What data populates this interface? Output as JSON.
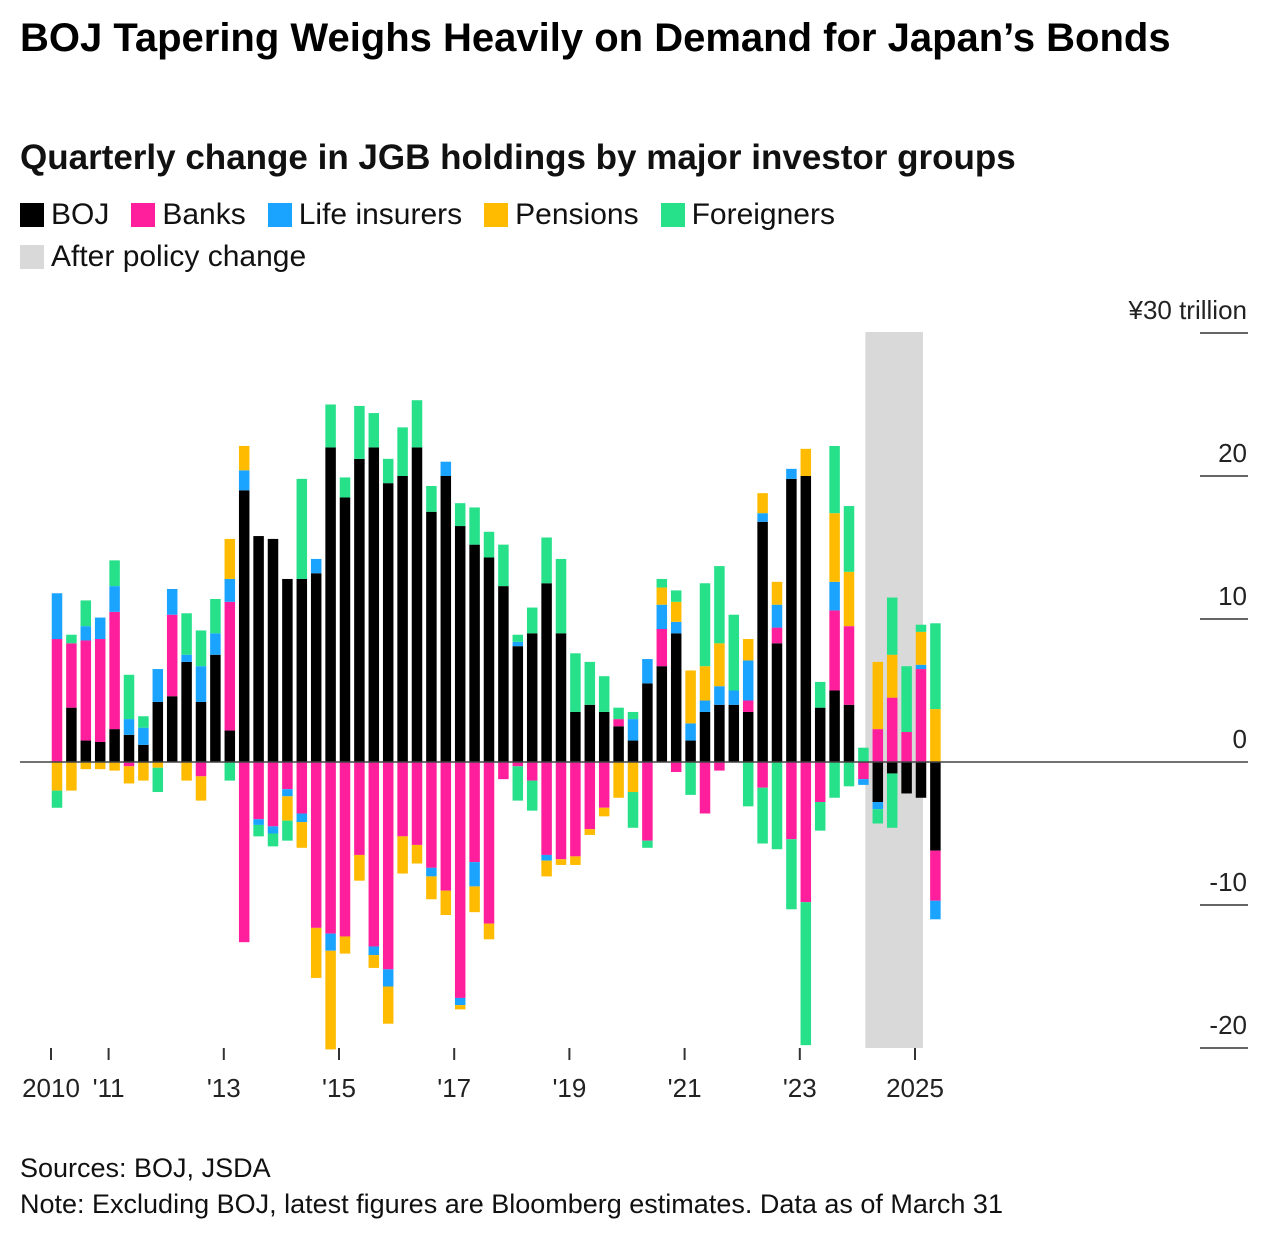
{
  "title": "BOJ Tapering Weighs Heavily on Demand for Japan’s Bonds",
  "subtitle": "Quarterly change in JGB holdings by major investor groups",
  "legend": {
    "series": [
      {
        "label": "BOJ",
        "color": "#000000"
      },
      {
        "label": "Banks",
        "color": "#ff1f9c"
      },
      {
        "label": "Life insurers",
        "color": "#1aa3ff"
      },
      {
        "label": "Pensions",
        "color": "#ffbb00"
      },
      {
        "label": "Foreigners",
        "color": "#26e08a"
      }
    ],
    "shade": {
      "label": "After policy change",
      "color": "#d9d9d9"
    }
  },
  "footer": {
    "sources": "Sources: BOJ, JSDA",
    "note": "Note: Excluding BOJ, latest figures are Bloomberg estimates. Data as of March 31"
  },
  "chart_data": {
    "type": "bar",
    "stacked": true,
    "unit_label": "¥30 trillion",
    "ylim": [
      -20,
      30
    ],
    "yticks": [
      30,
      20,
      10,
      0,
      -10,
      -20
    ],
    "ytick_labels": [
      "¥30 trillion",
      "20",
      "10",
      "0",
      "-10",
      "-20"
    ],
    "xticks": [
      {
        "label": "2010",
        "q": 0
      },
      {
        "label": "'11",
        "q": 4
      },
      {
        "label": "'13",
        "q": 12
      },
      {
        "label": "'15",
        "q": 20
      },
      {
        "label": "'17",
        "q": 28
      },
      {
        "label": "'19",
        "q": 36
      },
      {
        "label": "'21",
        "q": 44
      },
      {
        "label": "'23",
        "q": 52
      },
      {
        "label": "2025",
        "q": 60
      }
    ],
    "shaded_region": {
      "label": "After policy change",
      "from_q": 56.5,
      "to_q": 60.5
    },
    "grid": false,
    "legend_position": "top",
    "series": [
      {
        "name": "BOJ",
        "color": "#000000",
        "values": [
          0,
          3.8,
          1.5,
          1.4,
          2.3,
          1.9,
          1.2,
          4.2,
          4.6,
          7,
          4.2,
          7.5,
          2.2,
          19,
          15.8,
          15.6,
          12.8,
          12.8,
          13.2,
          22,
          18.5,
          21.2,
          22,
          19.5,
          20,
          22,
          17.5,
          20,
          16.5,
          15.2,
          14.3,
          12.3,
          8.1,
          9,
          12.5,
          9,
          3.5,
          4,
          3.5,
          2.5,
          1.5,
          5.5,
          6.7,
          9,
          1.5,
          3.5,
          4,
          4,
          3.5,
          16.8,
          8.3,
          19.8,
          20,
          3.8,
          5,
          4,
          0,
          -2.8,
          -0.8,
          -2.2,
          -2.5,
          -6.2
        ],
        "neg_first": [
          false,
          false,
          false,
          false,
          false,
          false,
          false,
          false,
          false,
          false,
          false,
          false,
          false,
          false,
          false,
          false,
          false,
          false,
          false,
          false,
          false,
          false,
          false,
          false,
          false,
          false,
          false,
          false,
          false,
          false,
          false,
          false,
          false,
          false,
          false,
          false,
          false,
          false,
          false,
          false,
          false,
          false,
          false,
          false,
          false,
          false,
          false,
          false,
          false,
          false,
          false,
          false,
          false,
          false,
          false,
          false,
          false,
          true,
          true,
          true,
          true,
          true
        ]
      },
      {
        "name": "Banks",
        "color": "#ff1f9c",
        "values": [
          8.6,
          4.5,
          7,
          7.2,
          8.2,
          -0.3,
          0,
          0,
          5.7,
          0,
          -1,
          0,
          9,
          -12.6,
          -4,
          -4.5,
          -1.9,
          -3.6,
          -11.6,
          -12,
          -12.2,
          -6.5,
          -12.9,
          -14.5,
          -5.2,
          -5.8,
          -7.4,
          -9,
          -16.5,
          -7,
          -11.3,
          -1.2,
          -0.3,
          -1.3,
          -6.5,
          -6.8,
          -6.6,
          -4.7,
          -3.2,
          0.5,
          0,
          -5.5,
          2.6,
          -0.7,
          0,
          -3.6,
          -0.6,
          0,
          0.8,
          -1.8,
          1.1,
          -5.4,
          -9.8,
          -2.8,
          5.6,
          5.5,
          -1.2,
          2.3,
          4.5,
          2.1,
          6.5,
          -3.5
        ],
        "neg_first": [
          false,
          false,
          false,
          false,
          false,
          true,
          false,
          false,
          false,
          false,
          true,
          false,
          false,
          true,
          true,
          true,
          true,
          true,
          true,
          true,
          true,
          true,
          true,
          true,
          true,
          true,
          true,
          true,
          true,
          true,
          true,
          true,
          true,
          true,
          true,
          true,
          true,
          true,
          true,
          false,
          false,
          true,
          false,
          true,
          false,
          true,
          true,
          false,
          false,
          true,
          false,
          true,
          true,
          true,
          false,
          false,
          true,
          false,
          false,
          false,
          false,
          true
        ]
      },
      {
        "name": "Life insurers",
        "color": "#1aa3ff",
        "values": [
          3.2,
          0,
          1,
          1.5,
          1.8,
          1.1,
          1.2,
          2.3,
          1.8,
          0.5,
          2.5,
          1.5,
          1.6,
          1.4,
          -0.4,
          -0.5,
          -0.5,
          -0.6,
          1,
          -1.2,
          0,
          0,
          -0.6,
          -1.2,
          0,
          0,
          -0.6,
          1,
          -0.5,
          -1.7,
          0,
          0,
          0.3,
          0,
          -0.4,
          0,
          0,
          0,
          0,
          0,
          1.5,
          1.7,
          1.7,
          0.8,
          1.2,
          0.8,
          1.3,
          1,
          2.8,
          0.6,
          1.6,
          0.7,
          0,
          0,
          2,
          0,
          -0.4,
          -0.5,
          0,
          0,
          0.3,
          -1.3
        ],
        "neg_first": [
          false,
          false,
          false,
          false,
          false,
          false,
          false,
          false,
          false,
          false,
          false,
          false,
          false,
          false,
          true,
          true,
          true,
          true,
          false,
          true,
          false,
          false,
          true,
          true,
          false,
          false,
          true,
          false,
          true,
          true,
          false,
          false,
          false,
          false,
          true,
          false,
          false,
          false,
          false,
          false,
          false,
          false,
          false,
          false,
          false,
          false,
          false,
          false,
          false,
          false,
          false,
          false,
          false,
          false,
          false,
          false,
          true,
          true,
          false,
          false,
          false,
          true
        ]
      },
      {
        "name": "Pensions",
        "color": "#ffbb00",
        "values": [
          -2,
          -2,
          -0.5,
          -0.5,
          -0.6,
          -1.2,
          -1.3,
          -0.4,
          0,
          -1.3,
          -1.7,
          0,
          2.8,
          1.7,
          0,
          0,
          -1.7,
          -1.8,
          -3.5,
          -6.9,
          -1.2,
          -1.8,
          -0.9,
          -2.6,
          -2.6,
          -1.3,
          -1.6,
          -1.7,
          -0.3,
          -1.8,
          -1.1,
          0,
          0,
          0,
          -1.1,
          -0.4,
          -0.6,
          -0.4,
          -0.6,
          -2.5,
          -2.1,
          0,
          1.2,
          1.4,
          3.7,
          2.4,
          3,
          0,
          1.5,
          1.4,
          1.6,
          0,
          1.9,
          0,
          4.8,
          3.8,
          0,
          4.7,
          3,
          0,
          2.3,
          3.7
        ],
        "neg_first": [
          true,
          true,
          true,
          true,
          true,
          true,
          true,
          true,
          false,
          true,
          true,
          false,
          false,
          false,
          false,
          false,
          true,
          true,
          true,
          true,
          true,
          true,
          true,
          true,
          true,
          true,
          true,
          true,
          true,
          true,
          true,
          false,
          false,
          false,
          true,
          true,
          true,
          true,
          true,
          true,
          true,
          false,
          false,
          false,
          false,
          false,
          false,
          false,
          false,
          false,
          false,
          false,
          false,
          false,
          false,
          false,
          false,
          false,
          false,
          false,
          false,
          false
        ]
      },
      {
        "name": "Foreigners",
        "color": "#26e08a",
        "values": [
          -1.2,
          0.6,
          1.8,
          0,
          1.8,
          3.1,
          0.8,
          -1.7,
          0,
          2.9,
          2.5,
          2.4,
          -1.3,
          0,
          -0.8,
          -0.9,
          -1.4,
          7,
          0,
          3,
          1.4,
          3.7,
          2.4,
          1.7,
          3.4,
          3.3,
          1.8,
          0,
          1.6,
          2.6,
          1.8,
          2.9,
          0.5,
          1.8,
          3.2,
          5.2,
          4.1,
          3,
          2.5,
          0.8,
          0.5,
          0,
          0.6,
          0.8,
          -2.3,
          5.8,
          5.4,
          5.3,
          0,
          0,
          0,
          0,
          0,
          1.8,
          4.7,
          4.6,
          1,
          -1,
          4,
          4.6,
          0.5,
          6
        ],
        "neg_first": [
          true,
          false,
          false,
          false,
          false,
          false,
          false,
          true,
          false,
          false,
          false,
          false,
          true,
          false,
          true,
          true,
          true,
          false,
          false,
          false,
          false,
          false,
          false,
          false,
          false,
          false,
          false,
          false,
          false,
          false,
          false,
          false,
          false,
          false,
          false,
          false,
          false,
          false,
          false,
          false,
          false,
          false,
          false,
          false,
          true,
          false,
          false,
          false,
          false,
          false,
          false,
          false,
          false,
          false,
          false,
          false,
          false,
          true,
          false,
          false,
          false,
          false
        ]
      }
    ],
    "extra_negative": {
      "Foreigners": [
        0,
        0,
        0,
        0,
        0,
        0,
        0,
        0,
        0,
        0,
        0,
        0,
        0,
        0,
        0,
        0,
        0,
        0,
        0,
        0,
        0,
        0,
        0,
        0,
        0,
        0,
        0,
        0,
        0,
        0,
        0,
        0,
        -2.4,
        -2.1,
        0,
        0,
        0,
        0,
        0,
        0,
        -2.5,
        -0.5,
        0,
        0,
        0,
        0,
        0,
        0,
        -3.1,
        -3.9,
        -6.1,
        -4.9,
        -10,
        -2,
        -2.5,
        -1.7,
        0,
        0,
        -3.8,
        0,
        0,
        0
      ],
      "BOJ_neg": [
        0,
        0,
        0,
        0,
        0,
        0,
        0,
        0,
        0,
        0,
        0,
        0,
        0,
        0,
        0,
        0,
        0,
        0,
        0,
        0,
        0,
        0,
        0,
        0,
        0,
        0,
        0,
        0,
        0,
        0,
        0,
        0,
        0,
        0,
        0,
        0,
        0,
        0,
        0,
        0,
        0,
        0,
        0,
        0,
        0,
        0,
        0,
        0,
        0,
        0,
        0,
        0,
        0,
        0,
        0,
        0,
        0,
        0,
        0,
        0,
        0,
        0
      ]
    }
  }
}
